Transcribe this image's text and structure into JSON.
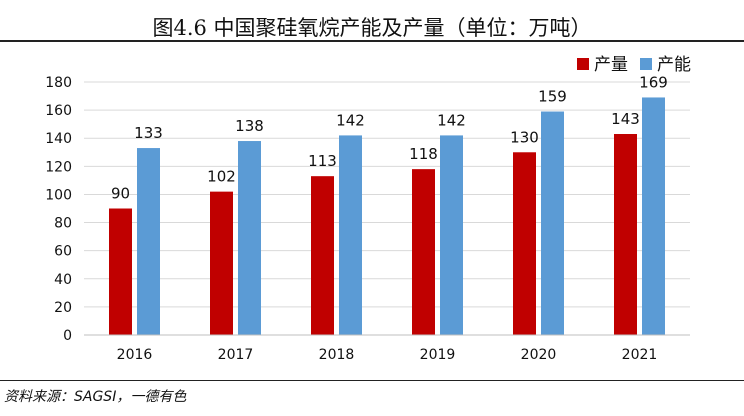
{
  "header": {
    "title": "图4.6 中国聚硅氧烷产能及产量（单位：万吨）"
  },
  "footer": {
    "source": "资料来源：SAGSI，一德有色"
  },
  "colors": {
    "产量": "#C00000",
    "产能": "#5B9BD5",
    "grid": "#D9D9D9"
  },
  "chart_data": {
    "type": "bar",
    "title": "图4.6 中国聚硅氧烷产能及产量（单位：万吨）",
    "categories": [
      "2016",
      "2017",
      "2018",
      "2019",
      "2020",
      "2021"
    ],
    "series": [
      {
        "name": "产量",
        "values": [
          90,
          102,
          113,
          118,
          130,
          143
        ]
      },
      {
        "name": "产能",
        "values": [
          133,
          138,
          142,
          142,
          159,
          169
        ]
      }
    ],
    "ylim": [
      0,
      180
    ],
    "yticks": [
      0,
      20,
      40,
      60,
      80,
      100,
      120,
      140,
      160,
      180
    ],
    "xlabel": "",
    "ylabel": "",
    "grid": true,
    "legend": "top-right"
  }
}
